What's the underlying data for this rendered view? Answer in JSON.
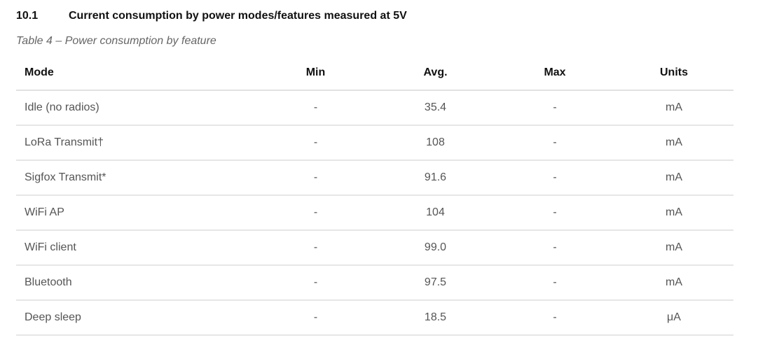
{
  "section": {
    "number": "10.1",
    "title": "Current consumption by power modes/features measured at 5V"
  },
  "caption": "Table 4 – Power consumption by feature",
  "table": {
    "headers": {
      "mode": "Mode",
      "min": "Min",
      "avg": "Avg.",
      "max": "Max",
      "units": "Units"
    },
    "rows": [
      {
        "mode": "Idle (no radios)",
        "min": "-",
        "avg": "35.4",
        "max": "-",
        "units": "mA"
      },
      {
        "mode": "LoRa Transmit†",
        "min": "-",
        "avg": "108",
        "max": "-",
        "units": "mA"
      },
      {
        "mode": "Sigfox Transmit*",
        "min": "-",
        "avg": "91.6",
        "max": "-",
        "units": "mA"
      },
      {
        "mode": "WiFi AP",
        "min": "-",
        "avg": "104",
        "max": "-",
        "units": "mA"
      },
      {
        "mode": "WiFi client",
        "min": "-",
        "avg": "99.0",
        "max": "-",
        "units": "mA"
      },
      {
        "mode": "Bluetooth",
        "min": "-",
        "avg": "97.5",
        "max": "-",
        "units": "mA"
      },
      {
        "mode": "Deep sleep",
        "min": "-",
        "avg": "18.5",
        "max": "-",
        "units": "μA"
      }
    ]
  }
}
